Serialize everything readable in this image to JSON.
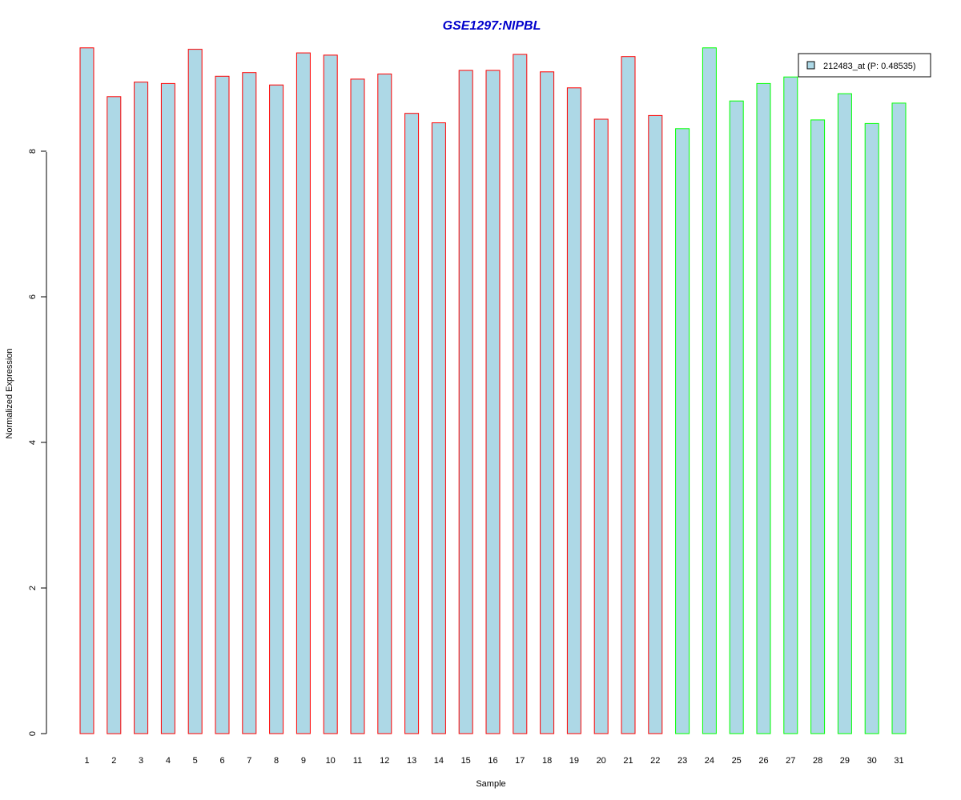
{
  "chart_data": {
    "type": "bar",
    "title": "GSE1297:NIPBL",
    "xlabel": "Sample",
    "ylabel": "Normalized Expression",
    "categories": [
      "1",
      "2",
      "3",
      "4",
      "5",
      "6",
      "7",
      "8",
      "9",
      "10",
      "11",
      "12",
      "13",
      "14",
      "15",
      "16",
      "17",
      "18",
      "19",
      "20",
      "21",
      "22",
      "23",
      "24",
      "25",
      "26",
      "27",
      "28",
      "29",
      "30",
      "31"
    ],
    "series": [
      {
        "name": "212483_at (P: 0.48535)",
        "values": [
          9.42,
          8.75,
          8.95,
          8.93,
          9.4,
          9.03,
          9.08,
          8.91,
          9.35,
          9.32,
          8.99,
          9.06,
          8.52,
          8.39,
          9.11,
          9.11,
          9.33,
          9.09,
          8.87,
          8.44,
          9.3,
          8.49,
          8.31,
          9.42,
          8.69,
          8.93,
          9.02,
          8.43,
          8.79,
          8.38,
          8.66
        ]
      }
    ],
    "groups": [
      "red",
      "red",
      "red",
      "red",
      "red",
      "red",
      "red",
      "red",
      "red",
      "red",
      "red",
      "red",
      "red",
      "red",
      "red",
      "red",
      "red",
      "red",
      "red",
      "red",
      "red",
      "red",
      "green",
      "green",
      "green",
      "green",
      "green",
      "green",
      "green",
      "green",
      "green"
    ],
    "yticks": [
      0,
      2,
      4,
      6,
      8
    ],
    "ylim": [
      0,
      9.5
    ],
    "legend_position": "top-right",
    "grid": false,
    "colors": {
      "title": "#0000cc",
      "bar_fill": "#add8e6",
      "border_red": "#ff0000",
      "border_green": "#00ff00",
      "axis": "#000000"
    }
  }
}
